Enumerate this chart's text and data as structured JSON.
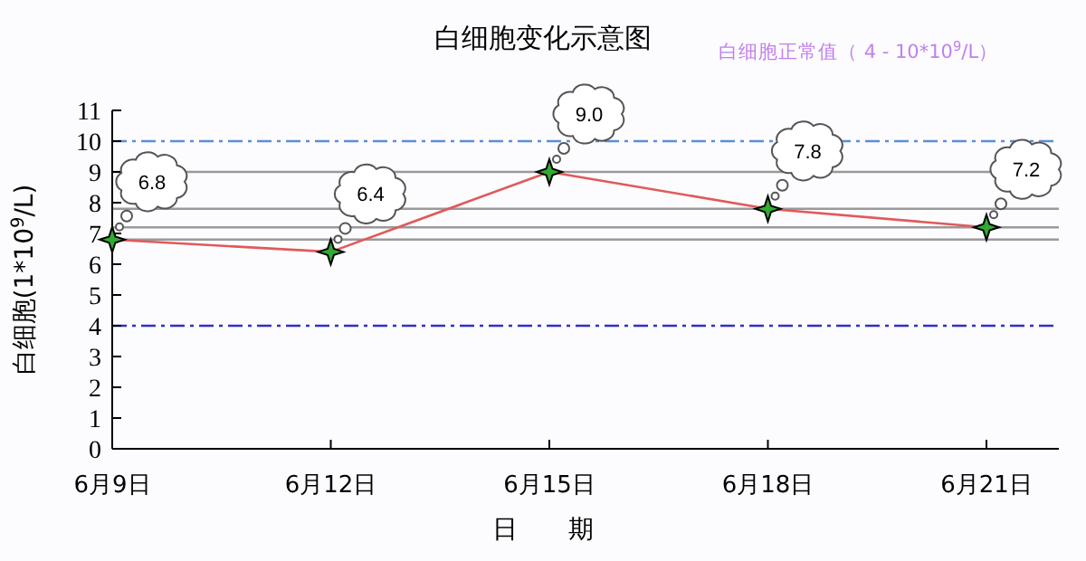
{
  "chart_data": {
    "type": "line",
    "title": "白细胞变化示意图",
    "xlabel": "日　　期",
    "ylabel": "白细胞(1*10$^{9}$/L)",
    "annotations": [
      "白细胞正常值（ 4 - 10*10$^{9}$/L）"
    ],
    "categories": [
      "6月9日",
      "6月12日",
      "6月15日",
      "6月18日",
      "6月21日"
    ],
    "series": [
      {
        "color": "#e05a5a",
        "values": [
          6.8,
          6.4,
          9.0,
          7.8,
          7.2
        ],
        "value_labels": [
          "6.8",
          "6.4",
          "9.0",
          "7.8",
          "7.2"
        ]
      }
    ],
    "ylim": [
      0,
      11
    ],
    "yticks": [
      0,
      1,
      2,
      3,
      4,
      5,
      6,
      7,
      8,
      9,
      10,
      11
    ],
    "marker": "star",
    "ref_lines": [
      {
        "axis": "y",
        "value": 10,
        "color": "#5b8fd6",
        "line_style": "dashed"
      },
      {
        "axis": "y",
        "value": 4,
        "color": "#3030c8",
        "line_style": "dashed"
      },
      {
        "axis": "y",
        "value": 9,
        "color": "#999999",
        "line_style": "solid"
      },
      {
        "axis": "y",
        "value": 7.8,
        "color": "#999999",
        "line_style": "solid"
      },
      {
        "axis": "y",
        "value": 7.2,
        "color": "#999999",
        "line_style": "solid"
      },
      {
        "axis": "y",
        "value": 6.8,
        "color": "#999999",
        "line_style": "solid"
      }
    ]
  }
}
